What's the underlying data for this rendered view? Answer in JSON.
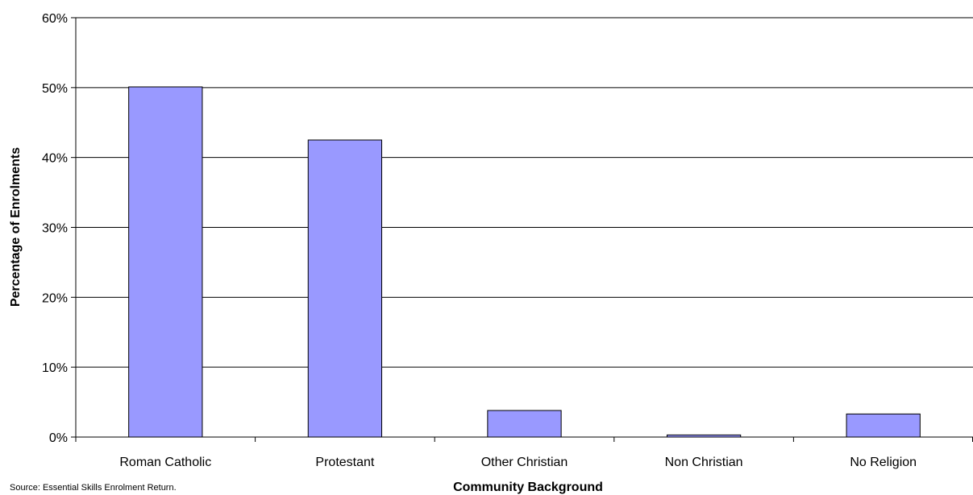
{
  "chart_data": {
    "type": "bar",
    "categories": [
      "Roman Catholic",
      "Protestant",
      "Other Christian",
      "Non Christian",
      "No Religion"
    ],
    "values": [
      50.1,
      42.5,
      3.8,
      0.3,
      3.3
    ],
    "xlabel": "Community Background",
    "ylabel": "Percentage of Enrolments",
    "ylim": [
      0,
      60
    ],
    "yticks": [
      "0%",
      "10%",
      "20%",
      "30%",
      "40%",
      "50%",
      "60%"
    ],
    "grid": true,
    "legend": "none",
    "bar_color": "#9999ff",
    "source": "Source: Essential Skills Enrolment Return."
  }
}
